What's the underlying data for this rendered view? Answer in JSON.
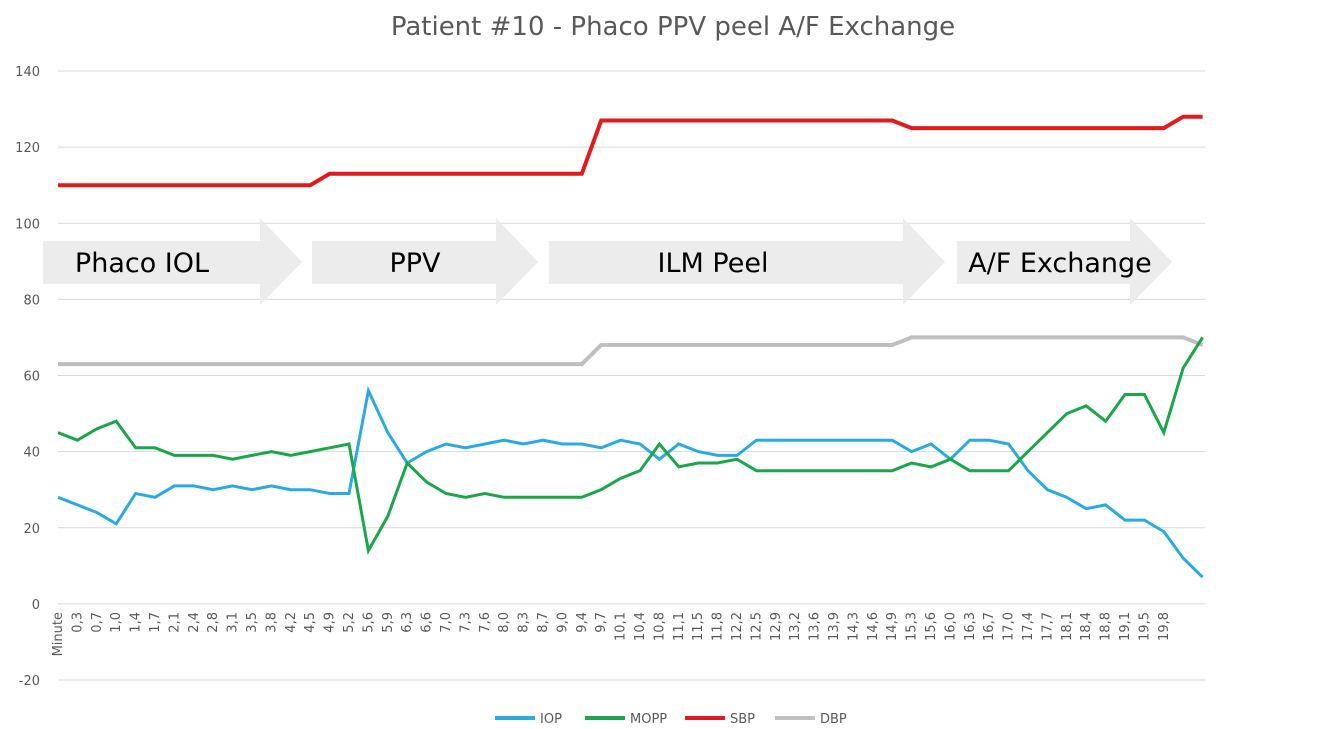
{
  "chart_data": {
    "type": "line",
    "title": "Patient #10 - Phaco PPV peel A/F Exchange",
    "annotations": [
      "Phaco IOL",
      "PPV",
      "ILM Peel",
      "A/F Exchange"
    ],
    "categories": [
      "Minute",
      "0,3",
      "0,7",
      "1,0",
      "1,4",
      "1,7",
      "2,1",
      "2,4",
      "2,8",
      "3,1",
      "3,5",
      "3,8",
      "4,2",
      "4,5",
      "4,9",
      "5,2",
      "5,6",
      "5,9",
      "6,3",
      "6,6",
      "7,0",
      "7,3",
      "7,6",
      "8,0",
      "8,3",
      "8,7",
      "9,0",
      "9,4",
      "9,7",
      "10,1",
      "10,4",
      "10,8",
      "11,1",
      "11,5",
      "11,8",
      "12,2",
      "12,5",
      "12,9",
      "13,2",
      "13,6",
      "13,9",
      "14,3",
      "14,6",
      "14,9",
      "15,3",
      "15,6",
      "16,0",
      "16,3",
      "16,7",
      "17,0",
      "17,4",
      "17,7",
      "18,1",
      "18,4",
      "18,8",
      "19,1",
      "19,5",
      "19,8",
      null,
      null
    ],
    "series": [
      {
        "name": "IOP",
        "color": "#29abe2",
        "values": [
          28,
          26,
          24,
          21,
          29,
          28,
          31,
          31,
          30,
          31,
          30,
          31,
          30,
          30,
          29,
          29,
          56,
          45,
          37,
          40,
          42,
          41,
          42,
          43,
          42,
          43,
          42,
          42,
          41,
          43,
          42,
          38,
          42,
          40,
          39,
          39,
          43,
          43,
          43,
          43,
          43,
          43,
          43,
          43,
          40,
          42,
          38,
          43,
          43,
          42,
          35,
          30,
          28,
          25,
          26,
          22,
          22,
          19,
          12,
          7
        ]
      },
      {
        "name": "MOPP",
        "color": "#1aa64a",
        "values": [
          45,
          43,
          46,
          48,
          41,
          41,
          39,
          39,
          39,
          38,
          39,
          40,
          39,
          40,
          41,
          42,
          14,
          23,
          37,
          32,
          29,
          28,
          29,
          28,
          28,
          28,
          28,
          28,
          30,
          33,
          35,
          42,
          36,
          37,
          37,
          38,
          35,
          35,
          35,
          35,
          35,
          35,
          35,
          35,
          37,
          36,
          38,
          35,
          35,
          35,
          40,
          45,
          50,
          52,
          48,
          55,
          55,
          45,
          62,
          70
        ]
      },
      {
        "name": "SBP",
        "color": "#e31a1c",
        "values": [
          110,
          110,
          110,
          110,
          110,
          110,
          110,
          110,
          110,
          110,
          110,
          110,
          110,
          110,
          113,
          113,
          113,
          113,
          113,
          113,
          113,
          113,
          113,
          113,
          113,
          113,
          113,
          113,
          127,
          127,
          127,
          127,
          127,
          127,
          127,
          127,
          127,
          127,
          127,
          127,
          127,
          127,
          127,
          127,
          125,
          125,
          125,
          125,
          125,
          125,
          125,
          125,
          125,
          125,
          125,
          125,
          125,
          125,
          128,
          128
        ]
      },
      {
        "name": "DBP",
        "color": "#bfbfbf",
        "values": [
          63,
          63,
          63,
          63,
          63,
          63,
          63,
          63,
          63,
          63,
          63,
          63,
          63,
          63,
          63,
          63,
          63,
          63,
          63,
          63,
          63,
          63,
          63,
          63,
          63,
          63,
          63,
          63,
          68,
          68,
          68,
          68,
          68,
          68,
          68,
          68,
          68,
          68,
          68,
          68,
          68,
          68,
          68,
          68,
          70,
          70,
          70,
          70,
          70,
          70,
          70,
          70,
          70,
          70,
          70,
          70,
          70,
          70,
          70,
          68
        ]
      }
    ],
    "ylim": [
      -20,
      140
    ],
    "yticks": [
      -20,
      0,
      20,
      40,
      60,
      80,
      100,
      120,
      140
    ],
    "grid": true,
    "legend": "bottom"
  }
}
